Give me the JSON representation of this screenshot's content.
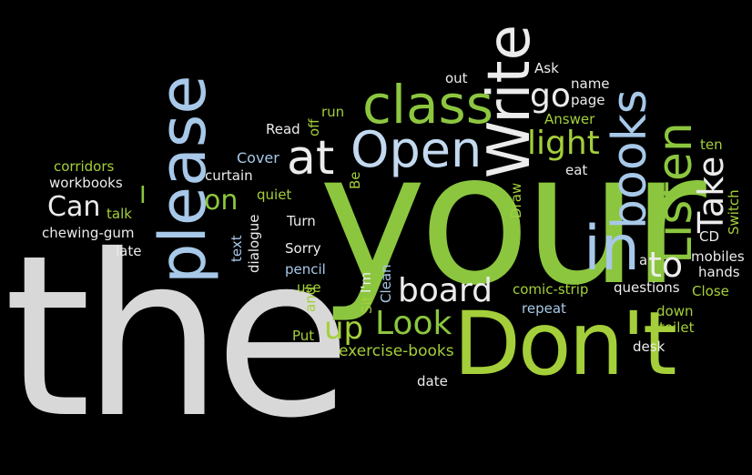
{
  "colors": {
    "background": "#000000",
    "white": "#ececec",
    "green": "#8cc63f",
    "blue": "#a7c8e8"
  },
  "words": {
    "the": "the",
    "your": "your",
    "dont": "Don't",
    "please": "please",
    "write": "Write",
    "class": "class",
    "open": "Open",
    "at": "at",
    "in": "in",
    "books": "books",
    "listen": "Listen",
    "take": "Take",
    "board": "board",
    "look": "Look",
    "light": "light",
    "go": "go",
    "to": "to",
    "up": "up",
    "can": "Can",
    "on": "on",
    "i": "I",
    "corridors": "corridors",
    "workbooks": "workbooks",
    "chewing_gum": "chewing-gum",
    "late": "late",
    "talk": "talk",
    "curtain": "curtain",
    "cover": "Cover",
    "read": "Read",
    "off": "off",
    "run": "run",
    "quiet": "quiet",
    "text": "text",
    "dialogue": "dialogue",
    "turn": "Turn",
    "sorry": "Sorry",
    "pencil": "pencil",
    "use": "use",
    "and": "and",
    "put": "Put",
    "sit": "Sit",
    "im": "I'm",
    "clean": "Clean",
    "be": "Be",
    "draw": "Draw",
    "out": "out",
    "ask": "Ask",
    "name": "name",
    "page": "page",
    "answer": "Answer",
    "eat": "eat",
    "ten": "ten",
    "switch": "Switch",
    "cd": "CD",
    "a": "a",
    "mobiles": "mobiles",
    "hands": "hands",
    "close": "Close",
    "questions": "questions",
    "comic_strip": "comic-strip",
    "repeat": "repeat",
    "down": "down",
    "toilet": "toilet",
    "desk": "desk",
    "exercise_books": "exercise-books",
    "date": "date"
  }
}
